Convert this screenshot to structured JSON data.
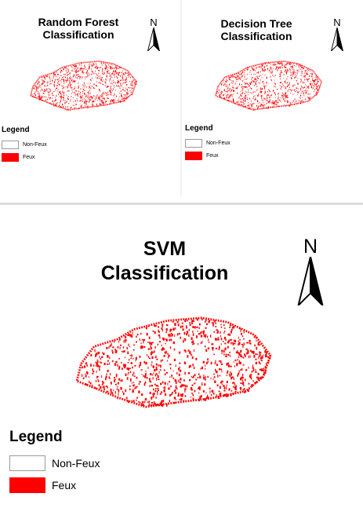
{
  "panels": {
    "random_forest": {
      "title_line1": "Random Forest",
      "title_line2": "Classification",
      "north_label": "N"
    },
    "decision_tree": {
      "title_line1": "Decision Tree",
      "title_line2": "Classification",
      "north_label": "N"
    },
    "svm": {
      "title_line1": "SVM",
      "title_line2": "Classification",
      "north_label": "N"
    }
  },
  "legend": {
    "title": "Legend",
    "items": [
      {
        "label": "Non-Feux",
        "color": "#ffffff"
      },
      {
        "label": "Feux",
        "color": "#ff0000"
      }
    ]
  },
  "colors": {
    "fire": "#ff0000",
    "background": "#ffffff"
  },
  "icons": {
    "north_arrow": "north-arrow-icon"
  }
}
